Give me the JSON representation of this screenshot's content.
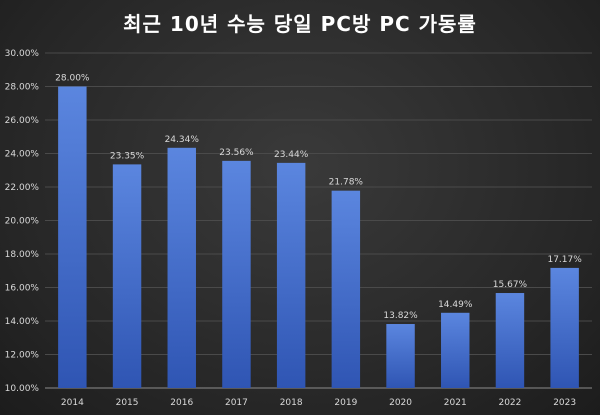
{
  "chart_data": {
    "type": "bar",
    "title": "최근 10년 수능 당일 PC방 PC 가동률",
    "xlabel": "",
    "ylabel": "",
    "categories": [
      "2014",
      "2015",
      "2016",
      "2017",
      "2018",
      "2019",
      "2020",
      "2021",
      "2022",
      "2023"
    ],
    "values": [
      28.0,
      23.35,
      24.34,
      23.56,
      23.44,
      21.78,
      13.82,
      14.49,
      15.67,
      17.17
    ],
    "value_labels": [
      "28.00%",
      "23.35%",
      "24.34%",
      "23.56%",
      "23.44%",
      "21.78%",
      "13.82%",
      "14.49%",
      "15.67%",
      "17.17%"
    ],
    "ylim": [
      10,
      30
    ],
    "y_ticks": [
      10,
      12,
      14,
      16,
      18,
      20,
      22,
      24,
      26,
      28,
      30
    ],
    "y_tick_labels": [
      "10.00%",
      "12.00%",
      "14.00%",
      "16.00%",
      "18.00%",
      "20.00%",
      "22.00%",
      "24.00%",
      "26.00%",
      "28.00%",
      "30.00%"
    ],
    "grid": true,
    "legend": "none",
    "colors": {
      "bar_top": "#5b86df",
      "bar_bottom": "#2f55b3",
      "text": "#d9d9d9",
      "grid": "#4a4a4a"
    }
  }
}
